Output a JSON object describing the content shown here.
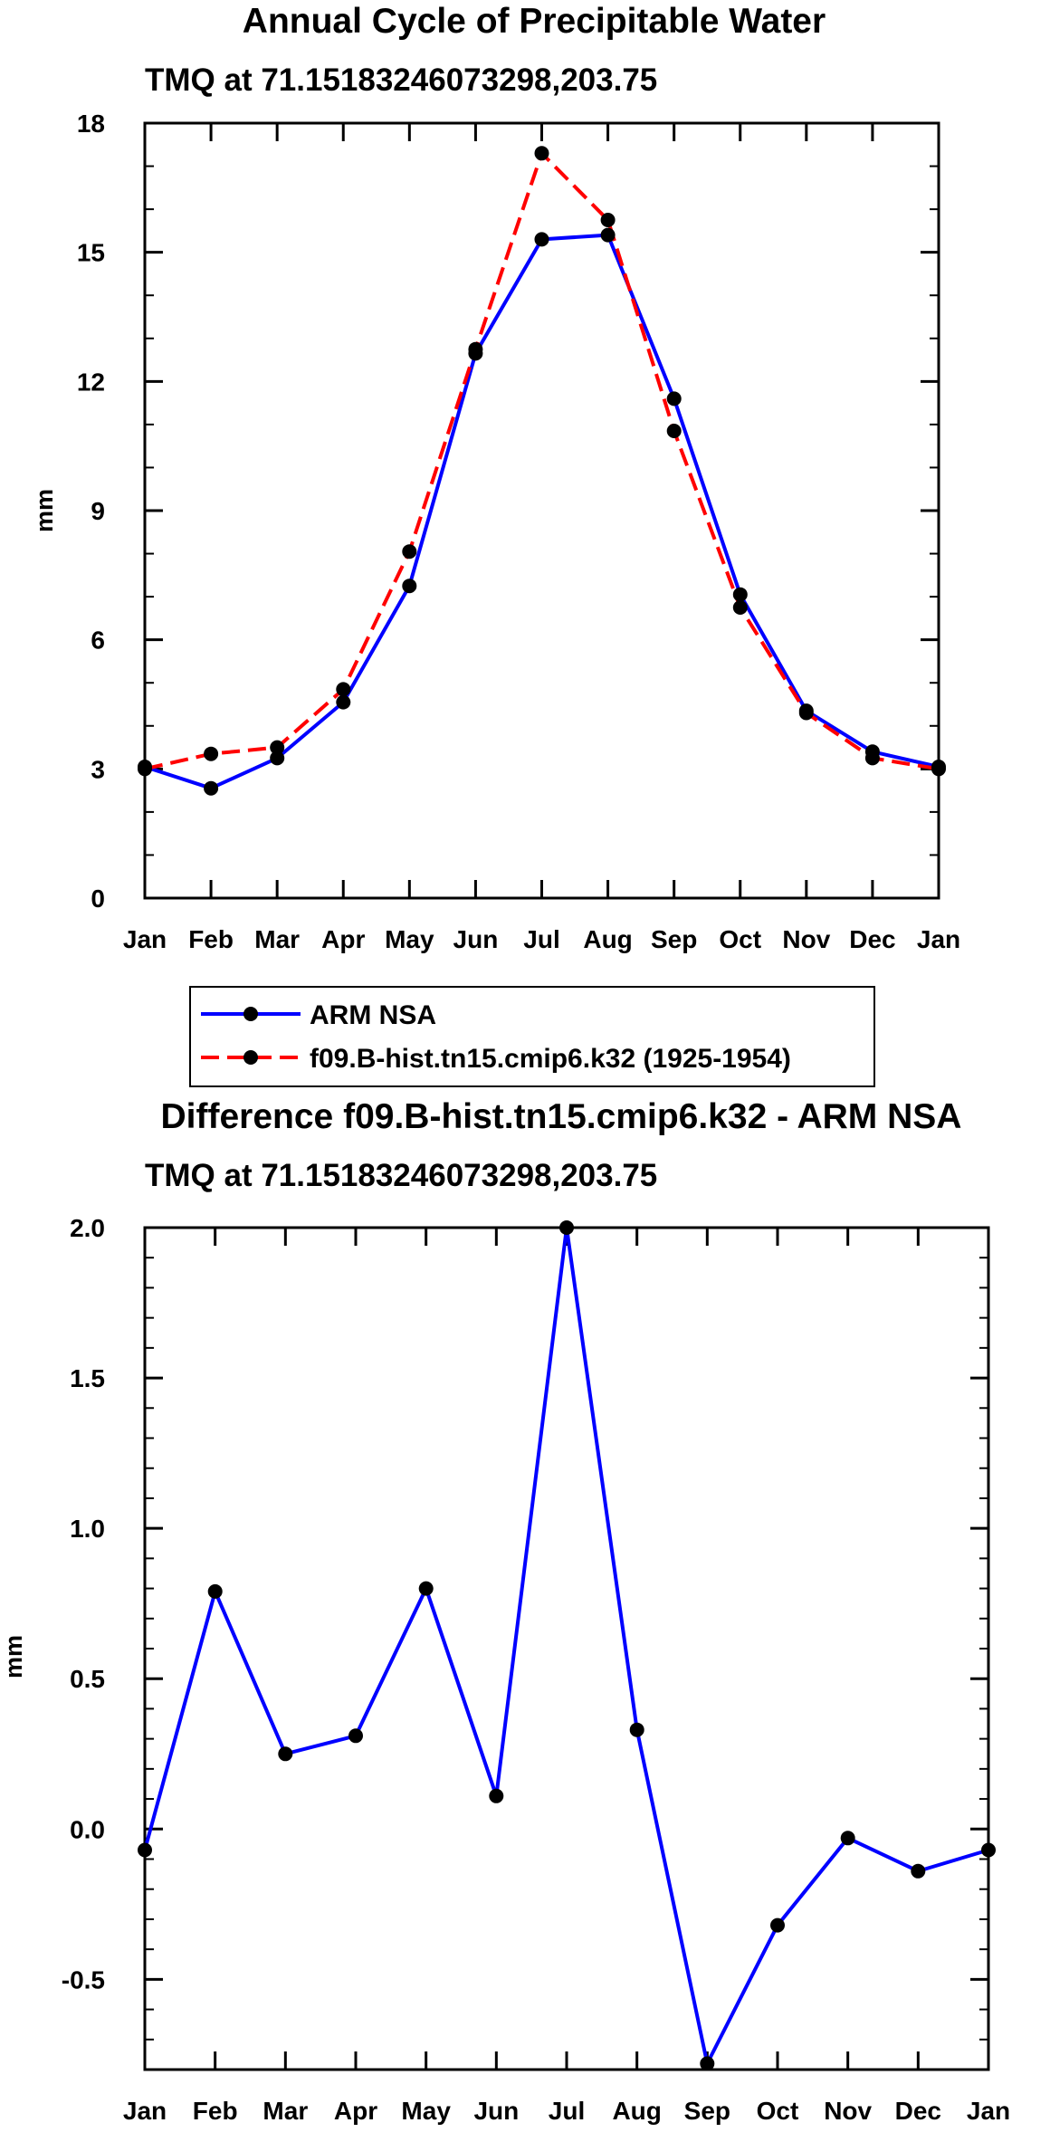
{
  "chart_data": [
    {
      "type": "line",
      "title": "Annual Cycle of Precipitable Water",
      "subtitle": "TMQ at 71.15183246073298,203.75",
      "xlabel": "",
      "ylabel": "mm",
      "categories": [
        "Jan",
        "Feb",
        "Mar",
        "Apr",
        "May",
        "Jun",
        "Jul",
        "Aug",
        "Sep",
        "Oct",
        "Nov",
        "Dec",
        "Jan"
      ],
      "ylim": [
        0,
        18
      ],
      "yticks": [
        "0",
        "3",
        "6",
        "9",
        "12",
        "15",
        "18"
      ],
      "series": [
        {
          "name": "ARM NSA",
          "color": "#0000ff",
          "dash": "solid",
          "values": [
            3.05,
            2.55,
            3.25,
            4.55,
            7.25,
            12.65,
            15.3,
            15.4,
            11.6,
            7.05,
            4.35,
            3.4,
            3.05
          ]
        },
        {
          "name": "f09.B-hist.tn15.cmip6.k32 (1925-1954)",
          "color": "#ff0000",
          "dash": "dashed",
          "values": [
            3.0,
            3.35,
            3.5,
            4.85,
            8.05,
            12.75,
            17.3,
            15.75,
            10.85,
            6.75,
            4.3,
            3.25,
            3.0
          ]
        }
      ],
      "legend": [
        "ARM NSA",
        "f09.B-hist.tn15.cmip6.k32 (1925-1954)"
      ],
      "legend_position": "below"
    },
    {
      "type": "line",
      "title": "Difference f09.B-hist.tn15.cmip6.k32 - ARM NSA",
      "subtitle": "TMQ at 71.15183246073298,203.75",
      "xlabel": "",
      "ylabel": "mm",
      "categories": [
        "Jan",
        "Feb",
        "Mar",
        "Apr",
        "May",
        "Jun",
        "Jul",
        "Aug",
        "Sep",
        "Oct",
        "Nov",
        "Dec",
        "Jan"
      ],
      "ylim": [
        -0.8,
        2.0
      ],
      "yticks": [
        "-0.5",
        "0.0",
        "0.5",
        "1.0",
        "1.5",
        "2.0"
      ],
      "series": [
        {
          "name": "Difference",
          "color": "#0000ff",
          "dash": "solid",
          "values": [
            -0.07,
            0.79,
            0.25,
            0.31,
            0.8,
            0.11,
            2.0,
            0.33,
            -0.78,
            -0.32,
            -0.03,
            -0.14,
            -0.07
          ]
        }
      ]
    }
  ]
}
